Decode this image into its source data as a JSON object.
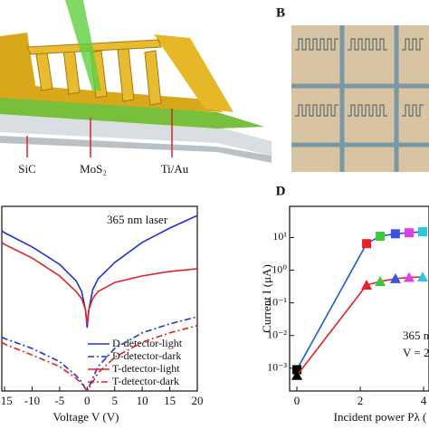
{
  "figure": {
    "panel_labels": [
      "B",
      "D"
    ],
    "device_labels": [
      "SiC",
      "MoS₂",
      "Ti/Au"
    ]
  },
  "chart_data": [
    {
      "type": "line",
      "x": [
        -15.5,
        -15,
        -10,
        -5,
        -2,
        -1,
        -0.3,
        0,
        0.3,
        1,
        2,
        5,
        10,
        15,
        20
      ],
      "xlim": [
        -15.5,
        20
      ],
      "xticks": [
        -15,
        -10,
        -5,
        0,
        5,
        10,
        15,
        20
      ],
      "ylim": [
        1e-12,
        1e-05
      ],
      "log_y": true,
      "xlabel": "Voltage V (V)",
      "annotation": "365 nm laser",
      "legend": "lower right",
      "series": [
        {
          "name": "D-detector-light",
          "color": "#2233d0",
          "linestyle": "solid",
          "values": [
            1.2e-06,
            1e-06,
            2.9e-07,
            6.3e-08,
            1.5e-08,
            5.9e-09,
            1.2e-09,
            2.5e-10,
            1.2e-09,
            6.9e-09,
            1.8e-08,
            7.4e-08,
            4.3e-07,
            1.5e-06,
            4.5e-06
          ]
        },
        {
          "name": "D-detector-dark",
          "color": "#2233d0",
          "linestyle": "dashdot",
          "values": [
            1.1e-10,
            9.8e-11,
            4.1e-11,
            1.3e-11,
            3.8e-12,
            2.2e-12,
            1.2e-12,
            1e-12,
            1.4e-12,
            3e-12,
            8.5e-12,
            4.1e-11,
            1.6e-10,
            3.5e-10,
            6.5e-10
          ]
        },
        {
          "name": "T-detector-light",
          "color": "#e0222a",
          "linestyle": "solid",
          "values": [
            4.3e-07,
            3.6e-07,
            1.1e-07,
            2.3e-08,
            5.9e-09,
            3.2e-09,
            1.2e-09,
            3.5e-10,
            1.2e-09,
            3.2e-09,
            5.9e-09,
            1.3e-08,
            2.3e-08,
            3.4e-08,
            4.3e-08
          ]
        },
        {
          "name": "T-detector-dark",
          "color": "#e0222a",
          "linestyle": "dashdot",
          "values": [
            7.1e-11,
            6e-11,
            2.3e-11,
            8.5e-12,
            3e-12,
            1.9e-12,
            1.2e-12,
            1e-12,
            1.2e-12,
            2.2e-12,
            4.9e-12,
            1.9e-11,
            7.1e-11,
            1.6e-10,
            3e-10
          ]
        }
      ]
    },
    {
      "type": "line",
      "x": [
        0,
        2.2,
        2.63,
        3.11,
        3.54,
        3.97
      ],
      "xlim": [
        -0.23,
        4.17
      ],
      "xticks": [
        0,
        2,
        4
      ],
      "ylim": [
        0.0002,
        90
      ],
      "log_y": true,
      "yticks": [
        {
          "value": 10,
          "label": "10¹"
        },
        {
          "value": 1,
          "label": "10⁰"
        },
        {
          "value": 0.1,
          "label": "10⁻¹"
        },
        {
          "value": 0.01,
          "label": "10⁻²"
        },
        {
          "value": 0.001,
          "label": "10⁻³"
        }
      ],
      "xlabel": "Incident power Pλ (",
      "ylabel": "Current I (μA)",
      "annotations": [
        "365 n",
        "V = 2"
      ],
      "series": [
        {
          "color": "#1e5ad2",
          "marker": "square",
          "marker_colors": [
            "#000000",
            "#e8202a",
            "#3cc83c",
            "#3c50e6",
            "#e040e0",
            "#30c8e0"
          ],
          "values": [
            0.0009,
            6.5,
            11,
            13,
            14,
            15
          ]
        },
        {
          "color": "#e0222a",
          "marker": "triangle",
          "marker_colors": [
            "#000000",
            "#e8202a",
            "#3cc83c",
            "#3c50e6",
            "#e040e0",
            "#30c8e0"
          ],
          "values": [
            0.0006,
            0.35,
            0.45,
            0.55,
            0.6,
            0.62
          ]
        }
      ]
    }
  ]
}
